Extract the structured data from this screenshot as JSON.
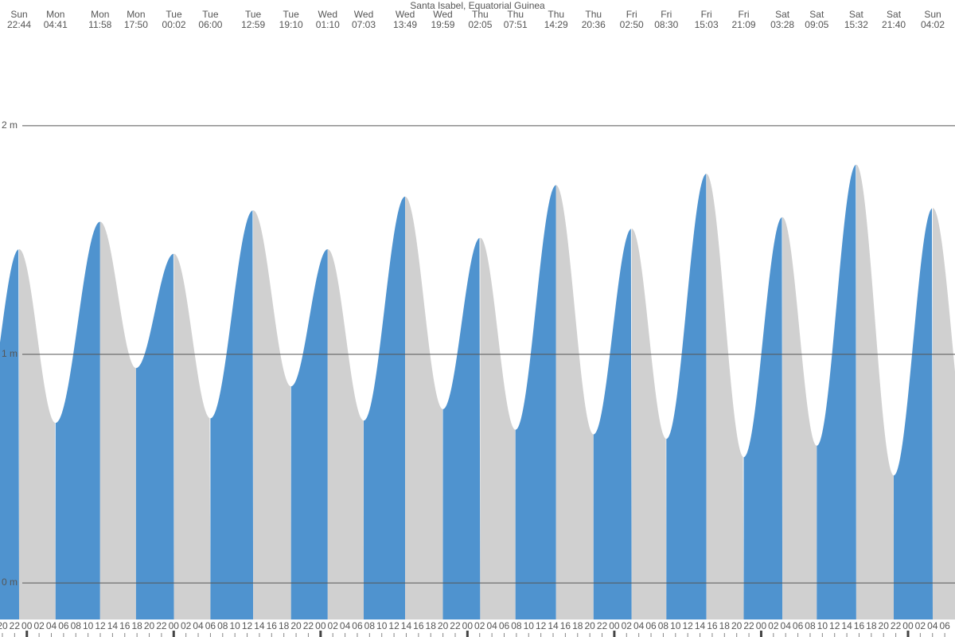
{
  "chart_data": {
    "type": "tide",
    "title": "Santa Isabel, Equatorial Guinea",
    "extremes": {
      "days": [
        "Sun",
        "Mon",
        "Mon",
        "Mon",
        "Tue",
        "Tue",
        "Tue",
        "Tue",
        "Wed",
        "Wed",
        "Wed",
        "Wed",
        "Thu",
        "Thu",
        "Thu",
        "Thu",
        "Fri",
        "Fri",
        "Fri",
        "Fri",
        "Sat",
        "Sat",
        "Sat",
        "Sat",
        "Sun"
      ],
      "times": [
        "22:44",
        "04:41",
        "11:58",
        "17:50",
        "00:02",
        "06:00",
        "12:59",
        "19:10",
        "01:10",
        "07:03",
        "13:49",
        "19:59",
        "02:05",
        "07:51",
        "14:29",
        "20:36",
        "02:50",
        "08:30",
        "15:03",
        "21:09",
        "03:28",
        "09:05",
        "15:32",
        "21:40",
        "04:02"
      ],
      "values": [
        1.46,
        0.7,
        1.58,
        0.94,
        1.44,
        0.72,
        1.63,
        0.86,
        1.46,
        0.71,
        1.69,
        0.76,
        1.51,
        0.67,
        1.74,
        0.65,
        1.55,
        0.63,
        1.79,
        0.55,
        1.6,
        0.6,
        1.83,
        0.47,
        1.64
      ]
    },
    "ylim": [
      -0.16,
      2.55
    ],
    "yticks": [
      {
        "value": 0,
        "label": "0 m"
      },
      {
        "value": 1,
        "label": "1 m"
      },
      {
        "value": 2,
        "label": "2 m"
      }
    ],
    "hour_labels": [
      "20",
      "22",
      "00",
      "02",
      "04",
      "06",
      "08",
      "10",
      "12",
      "14",
      "16",
      "18",
      "20",
      "22",
      "00",
      "02",
      "04",
      "06",
      "08",
      "10",
      "12",
      "14",
      "16",
      "18",
      "20",
      "22",
      "00",
      "02",
      "04",
      "06",
      "08",
      "10",
      "12",
      "14",
      "16",
      "18",
      "20",
      "22",
      "00",
      "02",
      "04",
      "06",
      "08",
      "10",
      "12",
      "14",
      "16",
      "18",
      "20",
      "22",
      "00",
      "02",
      "04",
      "06",
      "08",
      "10",
      "12",
      "14",
      "16",
      "18",
      "20",
      "22",
      "00",
      "02",
      "04",
      "06",
      "08",
      "10",
      "12",
      "14",
      "16",
      "18",
      "20",
      "22",
      "00",
      "02",
      "04",
      "06"
    ],
    "rising_color": "#4f93cf",
    "falling_color": "#d0d0d0"
  }
}
